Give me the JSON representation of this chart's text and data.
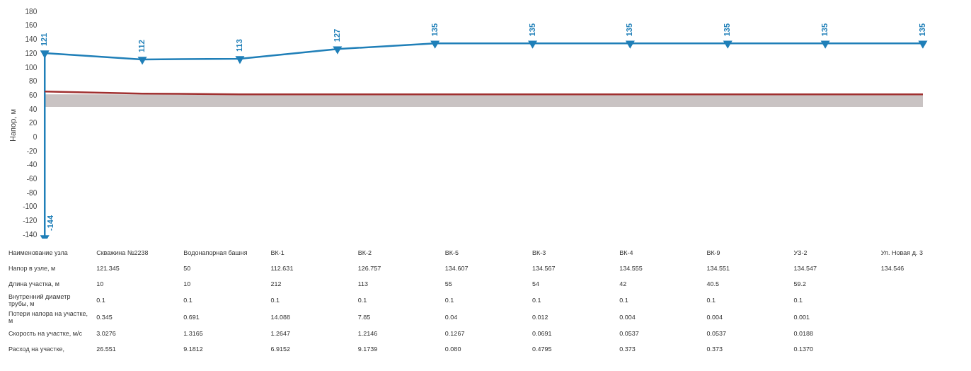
{
  "chart_data": [
    {
      "type": "line",
      "ylabel": "Напор, м",
      "categories": [
        null,
        null,
        null,
        null,
        null,
        null,
        null,
        null,
        null,
        null
      ],
      "ylim": [
        -145,
        180
      ],
      "yticks": [
        -140,
        -120,
        -100,
        -80,
        -60,
        -40,
        -20,
        0,
        20,
        40,
        60,
        80,
        100,
        120,
        140,
        160,
        180
      ],
      "marker": "triangle",
      "legend": false,
      "grid": false,
      "series": [
        {
          "color": "#1f7fb8",
          "values": [
            121,
            112,
            113,
            127,
            135,
            135,
            135,
            135,
            135,
            135
          ],
          "value_labels": [
            "121",
            "112",
            "113",
            "127",
            "135",
            "135",
            "135",
            "135",
            "135",
            "135"
          ]
        },
        {
          "color": "#1f7fb8",
          "values": [
            -144,
            null,
            null,
            null,
            null,
            null,
            null,
            null,
            null,
            null
          ],
          "value_labels": [
            "-144",
            null,
            null,
            null,
            null,
            null,
            null,
            null,
            null,
            null
          ]
        },
        {
          "type": "line",
          "color": "#a03030",
          "marker": "none",
          "values": [
            66,
            63,
            62,
            62,
            62,
            62,
            62,
            62,
            62,
            62
          ]
        }
      ],
      "bands": [
        {
          "axis": "y",
          "from": 44,
          "to": 62,
          "color": "#c9c3c3"
        }
      ]
    },
    {
      "type": "other",
      "data_labels": true,
      "xlabel": "Наименование узла",
      "categories": [
        "Скважина №2238",
        "Водонапорная башня",
        "ВК-1",
        "ВК-2",
        "ВК-5",
        "ВК-3",
        "ВК-4",
        "ВК-9",
        "УЗ-2",
        "Ул. Новая д. 3"
      ],
      "series": [
        {
          "name": "Напор в узле, м",
          "values": [
            121.345,
            50,
            112.631,
            126.757,
            134.607,
            134.567,
            134.555,
            134.551,
            134.547,
            134.546
          ]
        },
        {
          "name": "Длина участка, м",
          "values": [
            10,
            10,
            212,
            113,
            55,
            54,
            42,
            40.5,
            59.2,
            null
          ]
        },
        {
          "name": "Внутренний диаметр трубы, м",
          "values": [
            0.1,
            0.1,
            0.1,
            0.1,
            0.1,
            0.1,
            0.1,
            0.1,
            0.1,
            null
          ]
        },
        {
          "name": "Потери напора на участке, м",
          "values": [
            0.345,
            0.691,
            14.088,
            7.85,
            0.04,
            0.012,
            0.004,
            0.004,
            0.001,
            null
          ]
        },
        {
          "name": "Скорость на участке, м/с",
          "values": [
            3.0276,
            1.3165,
            1.2647,
            1.2146,
            0.1267,
            0.0691,
            0.0537,
            0.0537,
            0.0188,
            null
          ]
        },
        {
          "name": "Расход на участке,",
          "values": [
            26.551,
            9.1812,
            6.9152,
            9.1739,
            0.08,
            0.4795,
            0.373,
            0.373,
            0.137,
            null
          ],
          "value_labels": [
            "26.551",
            "9.1812",
            "6.9152",
            "9.1739",
            "0.080",
            "0.4795",
            "0.373",
            "0.373",
            "0.1370",
            null
          ]
        }
      ]
    }
  ]
}
